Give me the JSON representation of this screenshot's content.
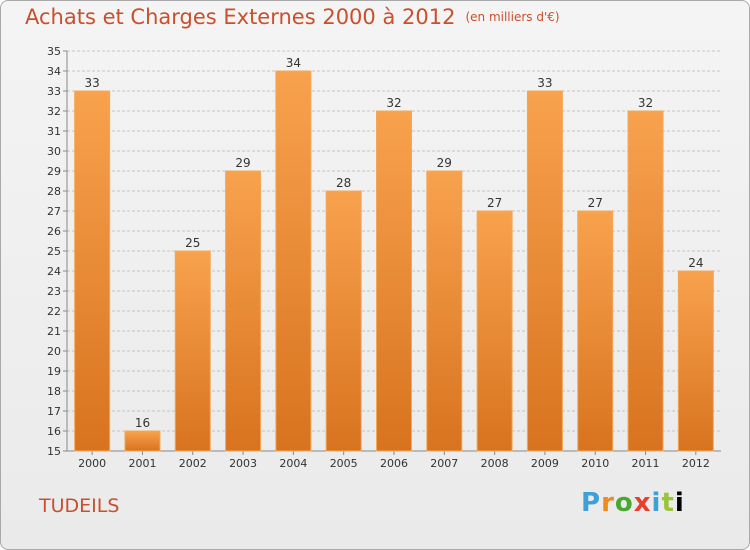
{
  "title": "Achats et Charges Externes 2000 à 2012",
  "unit_note": "(en milliers d'€)",
  "commune": "TUDEILS",
  "logo_letters": [
    "P",
    "r",
    "o",
    "x",
    "i",
    "t",
    "i"
  ],
  "colors": {
    "bar_top": "#f8a24e",
    "bar_bottom": "#d8731f",
    "title": "#c8502d"
  },
  "chart_data": {
    "type": "bar",
    "title": "Achats et Charges Externes 2000 à 2012",
    "subtitle": "(en milliers d'€)",
    "categories": [
      "2000",
      "2001",
      "2002",
      "2003",
      "2004",
      "2005",
      "2006",
      "2007",
      "2008",
      "2009",
      "2010",
      "2011",
      "2012"
    ],
    "values": [
      33,
      16,
      25,
      29,
      34,
      28,
      32,
      29,
      27,
      33,
      27,
      32,
      24
    ],
    "ylim": [
      15,
      35
    ],
    "yticks": [
      15,
      16,
      17,
      18,
      19,
      20,
      21,
      22,
      23,
      24,
      25,
      26,
      27,
      28,
      29,
      30,
      31,
      32,
      33,
      34,
      35
    ],
    "grid": true,
    "xlabel": "",
    "ylabel": ""
  }
}
